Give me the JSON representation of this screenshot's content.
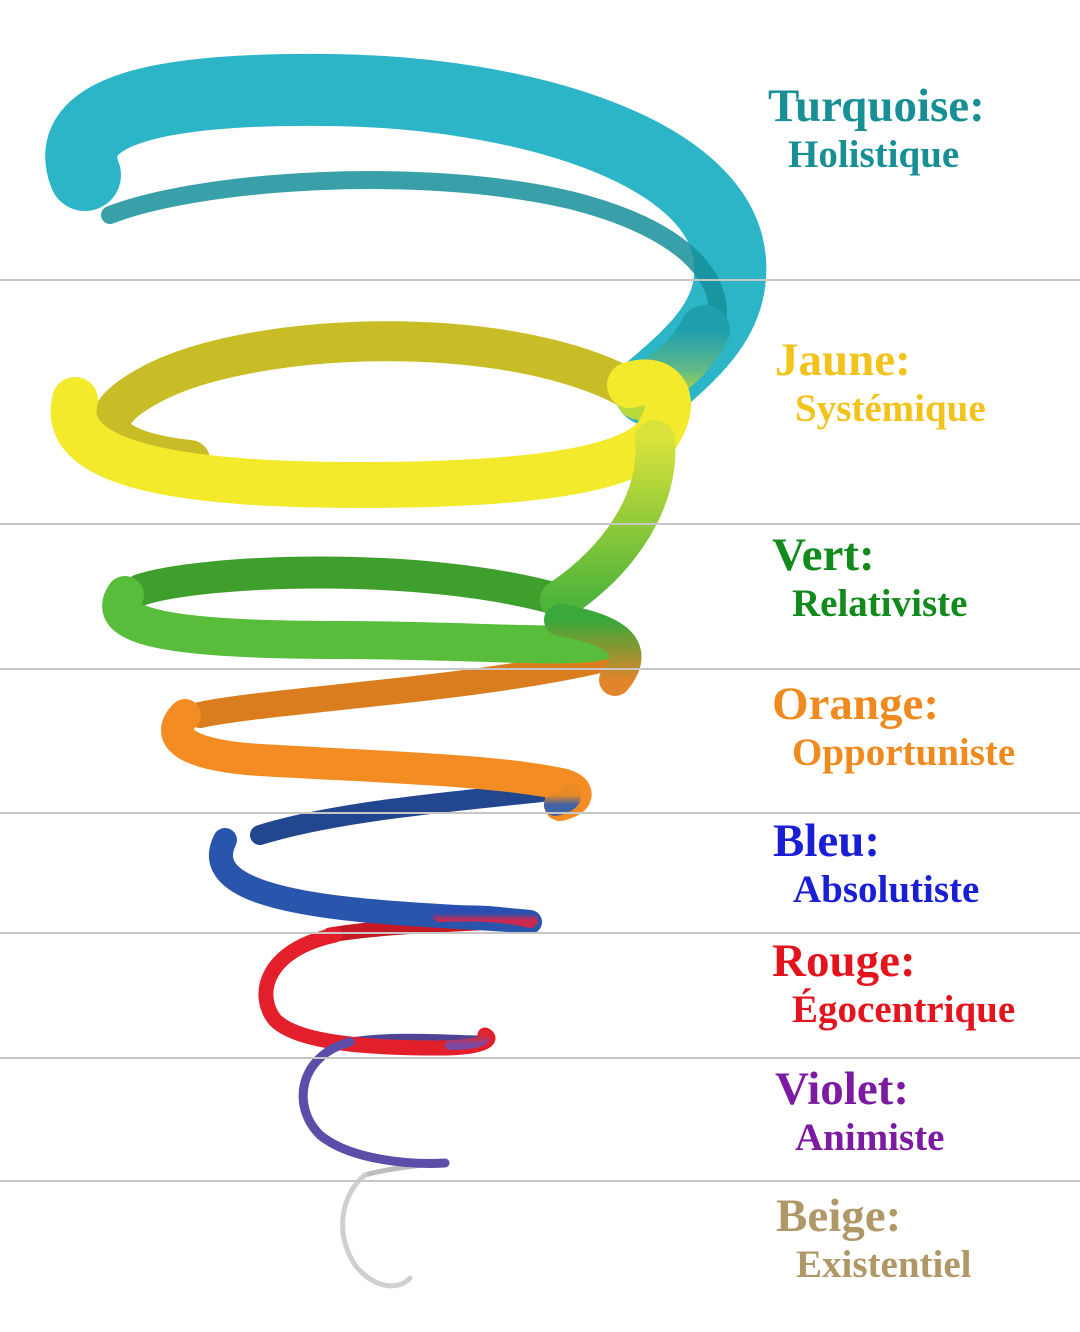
{
  "levels": [
    {
      "id": "turquoise",
      "name": "Turquoise:",
      "description": "Holistique",
      "color": "#178f94",
      "band_color": "#2bb5c6"
    },
    {
      "id": "jaune",
      "name": "Jaune:",
      "description": "Systémique",
      "color": "#f2c31b",
      "band_color": "#f2ea2a"
    },
    {
      "id": "vert",
      "name": "Vert:",
      "description": "Relativiste",
      "color": "#128a1c",
      "band_color": "#57bd3a"
    },
    {
      "id": "orange",
      "name": "Orange:",
      "description": "Opportuniste",
      "color": "#f08a1e",
      "band_color": "#f28c23"
    },
    {
      "id": "bleu",
      "name": "Bleu:",
      "description": "Absolutiste",
      "color": "#1a1fd6",
      "band_color": "#2a55ad"
    },
    {
      "id": "rouge",
      "name": "Rouge:",
      "description": "Égocentrique",
      "color": "#e3141d",
      "band_color": "#e21f2a"
    },
    {
      "id": "violet",
      "name": "Violet:",
      "description": "Animiste",
      "color": "#7c1aa1",
      "band_color": "#5b4ea8"
    },
    {
      "id": "beige",
      "name": "Beige:",
      "description": "Existentiel",
      "color": "#b09768",
      "band_color": "#cfcfcf"
    }
  ]
}
